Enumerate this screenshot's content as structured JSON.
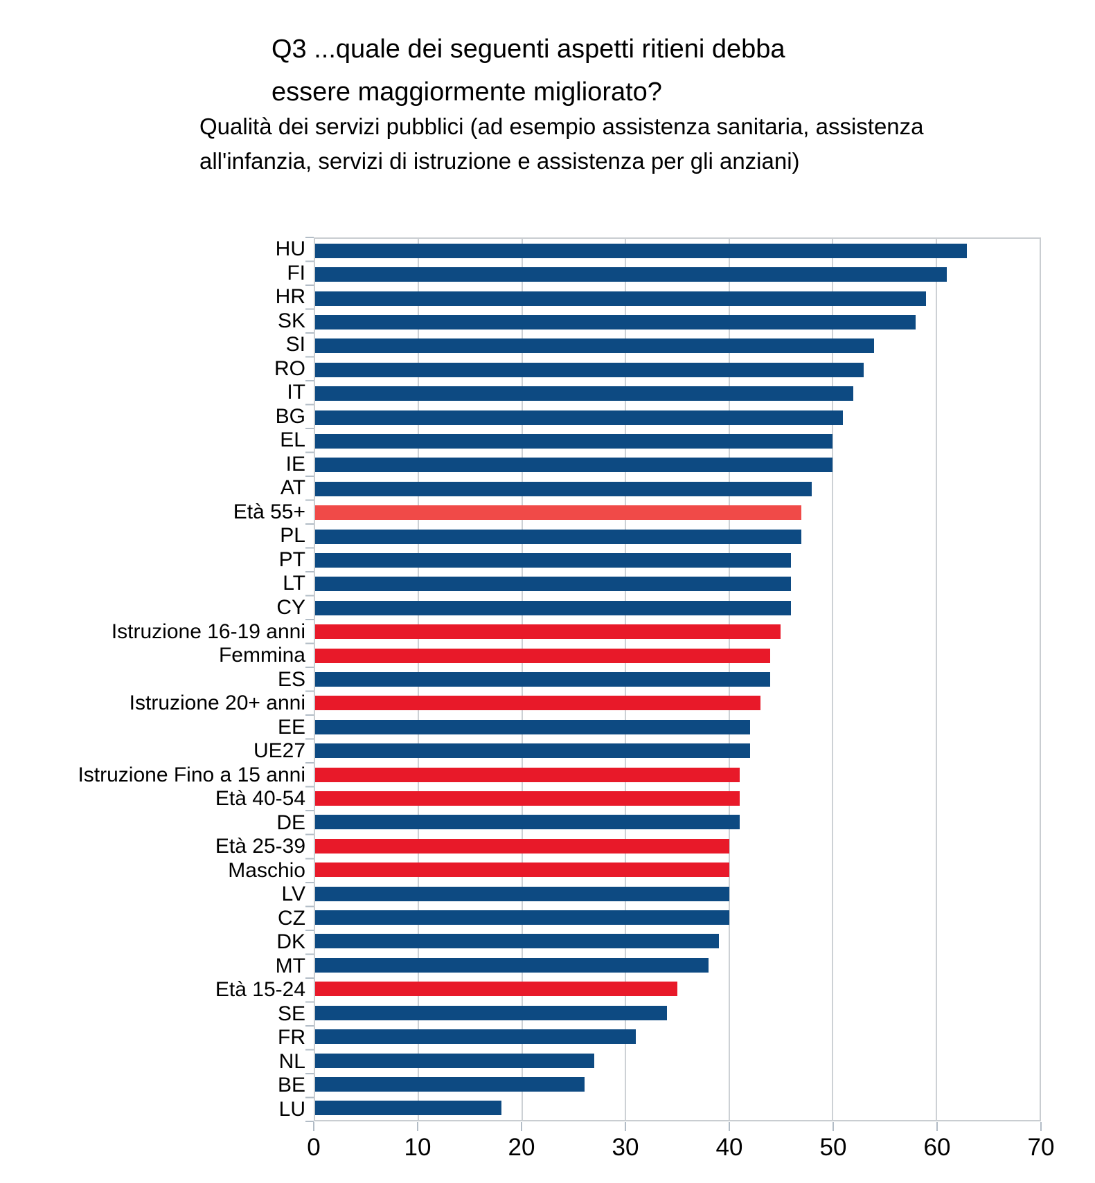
{
  "title": {
    "line1": "Q3 ...quale dei seguenti aspetti ritieni debba",
    "line2": "essere maggiormente migliorato?"
  },
  "subtitle": {
    "line1": "Qualità dei servizi pubblici (ad esempio assistenza sanitaria, assistenza",
    "line2": "all'infanzia, servizi di istruzione e assistenza per gli anziani)"
  },
  "chart_data": {
    "type": "bar",
    "orientation": "horizontal",
    "title": "Q3 ...quale dei seguenti aspetti ritieni debba essere maggiormente migliorato?",
    "subtitle": "Qualità dei servizi pubblici (ad esempio assistenza sanitaria, assistenza all'infanzia, servizi di istruzione e assistenza per gli anziani)",
    "xlabel": "",
    "ylabel": "",
    "xlim": [
      0,
      70
    ],
    "xticks": [
      0,
      10,
      20,
      30,
      40,
      50,
      60,
      70
    ],
    "grid": true,
    "legend": false,
    "colors": {
      "country": "#0D4A82",
      "demographic": "#E81929",
      "demographic_highlight": "#F04A48"
    },
    "categories": [
      "HU",
      "FI",
      "HR",
      "SK",
      "SI",
      "RO",
      "IT",
      "BG",
      "EL",
      "IE",
      "AT",
      "Età 55+",
      "PL",
      "PT",
      "LT",
      "CY",
      "Istruzione 16-19 anni",
      "Femmina",
      "ES",
      "Istruzione 20+ anni",
      "EE",
      "UE27",
      "Istruzione Fino a 15 anni",
      "Età 40-54",
      "DE",
      "Età 25-39",
      "Maschio",
      "LV",
      "CZ",
      "DK",
      "MT",
      "Età 15-24",
      "SE",
      "FR",
      "NL",
      "BE",
      "LU"
    ],
    "values": [
      63,
      61,
      59,
      58,
      54,
      53,
      52,
      51,
      50,
      50,
      48,
      47,
      47,
      46,
      46,
      46,
      45,
      44,
      44,
      43,
      42,
      42,
      41,
      41,
      41,
      40,
      40,
      40,
      40,
      39,
      38,
      35,
      34,
      31,
      27,
      26,
      18
    ],
    "groups": [
      "country",
      "country",
      "country",
      "country",
      "country",
      "country",
      "country",
      "country",
      "country",
      "country",
      "country",
      "demographic_highlight",
      "country",
      "country",
      "country",
      "country",
      "demographic",
      "demographic",
      "country",
      "demographic",
      "country",
      "country",
      "demographic",
      "demographic",
      "country",
      "demographic",
      "demographic",
      "country",
      "country",
      "country",
      "country",
      "demographic",
      "country",
      "country",
      "country",
      "country",
      "country"
    ]
  }
}
